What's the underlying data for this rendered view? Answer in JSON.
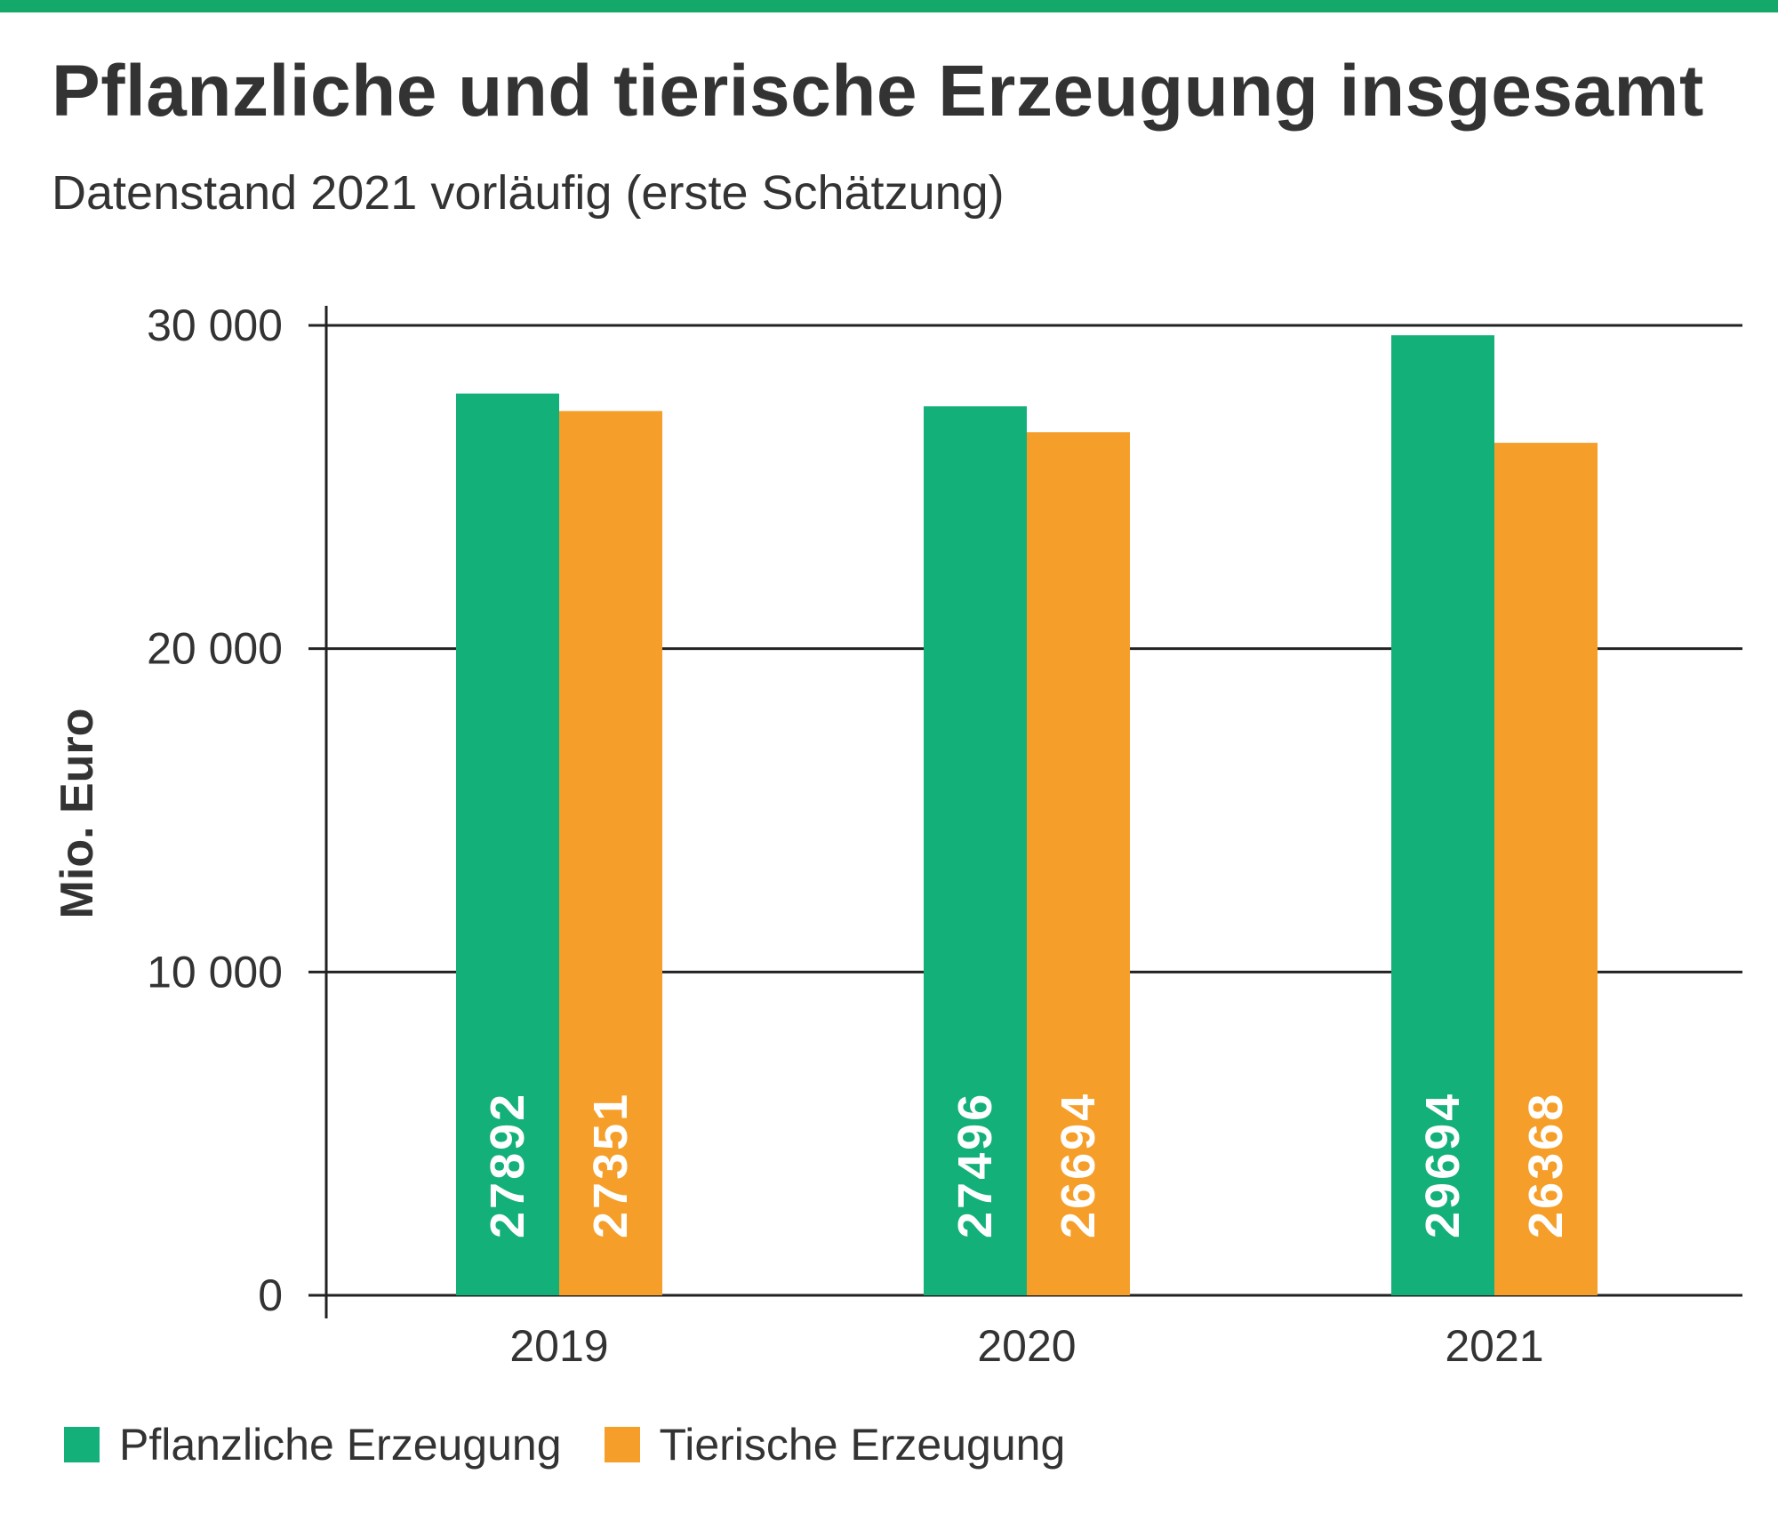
{
  "header": {
    "title": "Pflanzliche und tierische Erzeugung insgesamt",
    "subtitle": "Datenstand 2021 vorläufig (erste Schätzung)"
  },
  "colors": {
    "accent_bar": "#14a86b",
    "pflanzlich": "#14b07a",
    "tierisch": "#f59f2a",
    "axis": "#222222",
    "text": "#333333",
    "value_label": "#ffffff"
  },
  "chart_data": {
    "type": "bar",
    "title": "Pflanzliche und tierische Erzeugung insgesamt",
    "subtitle": "Datenstand 2021 vorläufig (erste Schätzung)",
    "xlabel": "",
    "ylabel": "Mio. Euro",
    "categories": [
      "2019",
      "2020",
      "2021"
    ],
    "series": [
      {
        "name": "Pflanzliche Erzeugung",
        "values": [
          27892,
          27496,
          29694
        ],
        "color": "#14b07a"
      },
      {
        "name": "Tierische Erzeugung",
        "values": [
          27351,
          26694,
          26368
        ],
        "color": "#f59f2a"
      }
    ],
    "ylim": [
      0,
      30000
    ],
    "yticks": [
      0,
      10000,
      20000,
      30000
    ],
    "ytick_labels": [
      "0",
      "10 000",
      "20 000",
      "30 000"
    ],
    "grid": true,
    "data_labels": "inside bars, rotated vertical",
    "legend_position": "bottom-left"
  }
}
